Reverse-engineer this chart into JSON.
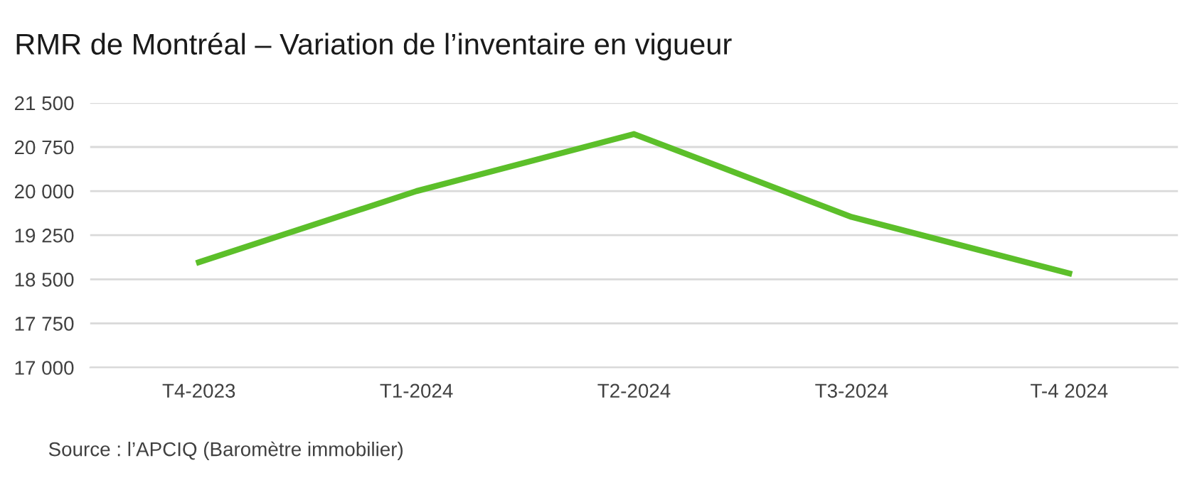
{
  "chart_data": {
    "type": "line",
    "title": "RMR de Montréal – Variation de l’inventaire en vigueur",
    "categories": [
      "T4-2023",
      "T1-2024",
      "T2-2024",
      "T3-2024",
      "T-4 2024"
    ],
    "series": [
      {
        "color": "#5cbf2a",
        "values": [
          18790,
          20000,
          20970,
          19560,
          18600
        ]
      }
    ],
    "ylim": [
      17000,
      21500
    ],
    "yticks": [
      {
        "value": 17000,
        "label": "17 000"
      },
      {
        "value": 17750,
        "label": "17 750"
      },
      {
        "value": 18500,
        "label": "18 500"
      },
      {
        "value": 19250,
        "label": "19 250"
      },
      {
        "value": 20000,
        "label": "20 000"
      },
      {
        "value": 20750,
        "label": "20 750"
      },
      {
        "value": 21500,
        "label": "21 500"
      }
    ],
    "grid": "y",
    "legend": false,
    "marker": "none",
    "line_style": "solid",
    "annotations": [
      "Source : l’APCIQ (Baromètre immobilier)"
    ]
  }
}
